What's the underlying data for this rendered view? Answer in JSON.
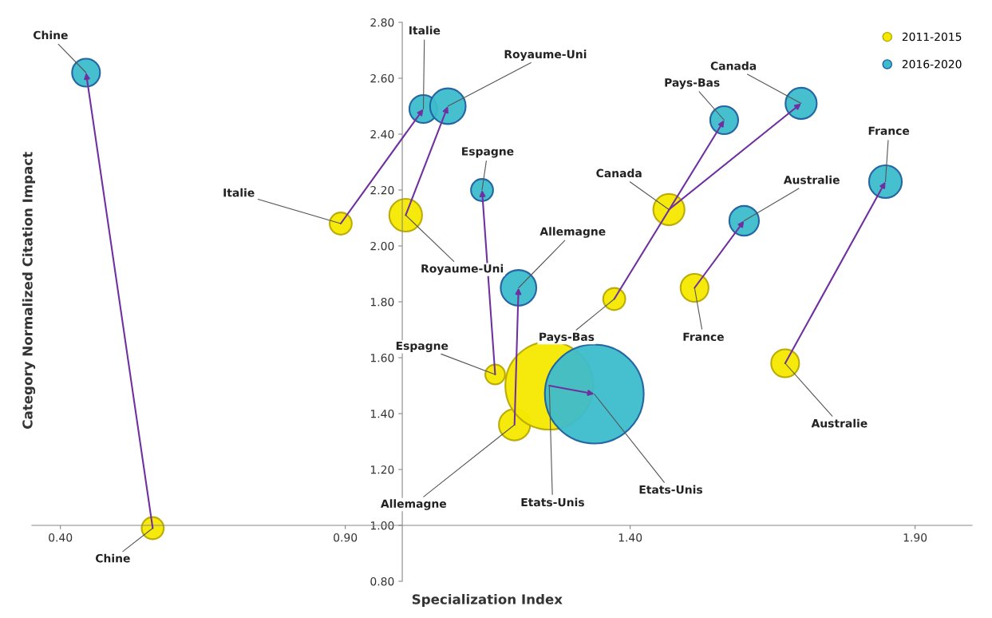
{
  "chart_data": {
    "type": "bubble",
    "xlabel": "Specialization Index",
    "ylabel": "Category Normalized Citation Impact",
    "xlim": [
      0.35,
      2.0
    ],
    "ylim": [
      0.8,
      2.8
    ],
    "xticks": [
      {
        "value": 0.4,
        "label": "0.40"
      },
      {
        "value": 0.9,
        "label": "0.90"
      },
      {
        "value": 1.4,
        "label": "1.40"
      },
      {
        "value": 1.9,
        "label": "1.90"
      }
    ],
    "yticks": [
      {
        "value": 0.8,
        "label": "0.80"
      },
      {
        "value": 1.0,
        "label": "1.00"
      },
      {
        "value": 1.2,
        "label": "1.20"
      },
      {
        "value": 1.4,
        "label": "1.40"
      },
      {
        "value": 1.6,
        "label": "1.60"
      },
      {
        "value": 1.8,
        "label": "1.80"
      },
      {
        "value": 2.0,
        "label": "2.00"
      },
      {
        "value": 2.2,
        "label": "2.20"
      },
      {
        "value": 2.4,
        "label": "2.40"
      },
      {
        "value": 2.6,
        "label": "2.60"
      },
      {
        "value": 2.8,
        "label": "2.80"
      }
    ],
    "grid": false,
    "legend": "top right",
    "series": [
      {
        "name": "2011-2015",
        "color": "#f5e900",
        "x": [
          0.562,
          0.892,
          1.006,
          1.163,
          1.197,
          1.258,
          1.372,
          1.468,
          1.513,
          1.672
        ],
        "values": [
          0.99,
          2.08,
          2.11,
          1.54,
          1.36,
          1.5,
          1.81,
          2.13,
          1.85,
          1.58
        ],
        "sizes": [
          0.05,
          0.05,
          0.11,
          0.04,
          0.1,
          0.79,
          0.05,
          0.1,
          0.08,
          0.08
        ]
      },
      {
        "name": "2016-2020",
        "color": "#3cbccc",
        "x": [
          0.445,
          1.037,
          1.08,
          1.14,
          1.204,
          1.337,
          1.565,
          1.7,
          1.6,
          1.848
        ],
        "values": [
          2.62,
          2.49,
          2.5,
          2.2,
          1.85,
          1.47,
          2.45,
          2.51,
          2.09,
          2.23
        ],
        "sizes": [
          0.08,
          0.08,
          0.13,
          0.05,
          0.13,
          1,
          0.08,
          0.1,
          0.09,
          0.11
        ]
      }
    ],
    "annotations": [
      {
        "text": "Chine",
        "x": 0.562,
        "y": 0.99
      },
      {
        "text": "Italie",
        "x": 0.892,
        "y": 2.08
      },
      {
        "text": "Royaume-Uni",
        "x": 1.006,
        "y": 2.11
      },
      {
        "text": "Espagne",
        "x": 1.163,
        "y": 1.54
      },
      {
        "text": "Allemagne",
        "x": 1.197,
        "y": 1.36
      },
      {
        "text": "Etats-Unis",
        "x": 1.258,
        "y": 1.5
      },
      {
        "text": "Pays-Bas",
        "x": 1.372,
        "y": 1.81
      },
      {
        "text": "Canada",
        "x": 1.468,
        "y": 2.13
      },
      {
        "text": "France",
        "x": 1.513,
        "y": 1.85
      },
      {
        "text": "Australie",
        "x": 1.672,
        "y": 1.58
      },
      {
        "text": "Chine",
        "x": 0.445,
        "y": 2.62
      },
      {
        "text": "Italie",
        "x": 1.037,
        "y": 2.49
      },
      {
        "text": "Royaume-Uni",
        "x": 1.08,
        "y": 2.5
      },
      {
        "text": "Espagne",
        "x": 1.14,
        "y": 2.2
      },
      {
        "text": "Allemagne",
        "x": 1.204,
        "y": 1.85
      },
      {
        "text": "Etats-Unis",
        "x": 1.337,
        "y": 1.47
      },
      {
        "text": "Pays-Bas",
        "x": 1.565,
        "y": 2.45
      },
      {
        "text": "Canada",
        "x": 1.7,
        "y": 2.51
      },
      {
        "text": "Australie",
        "x": 1.6,
        "y": 2.09
      },
      {
        "text": "France",
        "x": 1.848,
        "y": 2.23
      }
    ]
  }
}
